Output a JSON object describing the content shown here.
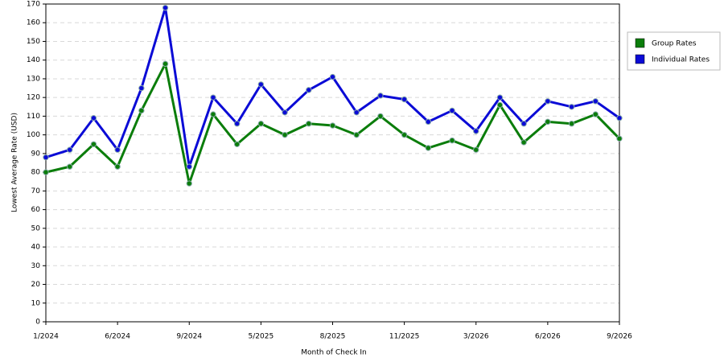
{
  "chart_data": {
    "type": "line",
    "x_label": "Month of Check In",
    "y_label": "Lowest Average Rate (USD)",
    "categories": [
      "1/2024",
      null,
      null,
      "6/2024",
      null,
      null,
      "9/2024",
      null,
      null,
      "5/2025",
      null,
      null,
      "8/2025",
      null,
      null,
      "11/2025",
      null,
      null,
      "3/2026",
      null,
      null,
      "6/2026",
      null,
      null,
      "9/2026"
    ],
    "series": [
      {
        "name": "Group Rates",
        "color": "#0b7d0b",
        "values": [
          80,
          83,
          95,
          83,
          113,
          138,
          74,
          111,
          95,
          106,
          100,
          106,
          105,
          100,
          110,
          100,
          93,
          97,
          92,
          116,
          96,
          107,
          106,
          111,
          98
        ]
      },
      {
        "name": "Individual Rates",
        "color": "#0b0bd6",
        "values": [
          88,
          92,
          109,
          92,
          125,
          168,
          83,
          120,
          106,
          127,
          112,
          124,
          131,
          112,
          121,
          119,
          107,
          113,
          102,
          120,
          106,
          118,
          115,
          118,
          109
        ]
      }
    ],
    "ylim": [
      0,
      170
    ],
    "yticks": [
      0,
      10,
      20,
      30,
      40,
      50,
      60,
      70,
      80,
      90,
      100,
      110,
      120,
      130,
      140,
      150,
      160,
      170
    ],
    "grid": true,
    "legend": "right"
  }
}
